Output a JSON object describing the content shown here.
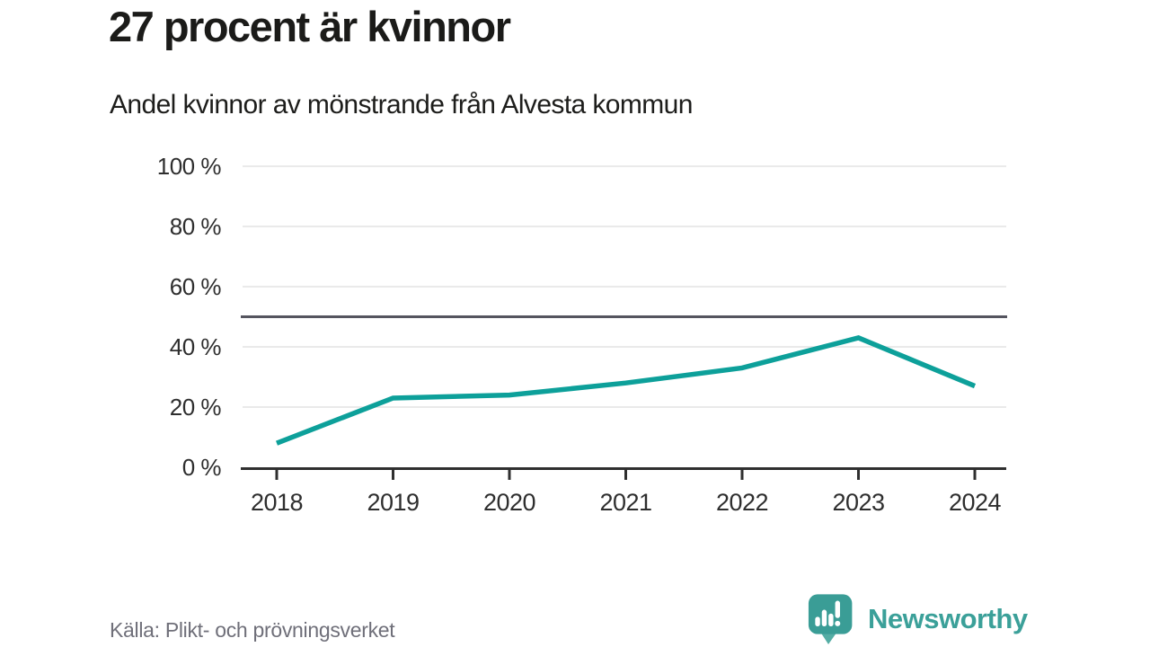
{
  "header": {
    "title": "27 procent är kvinnor",
    "subtitle": "Andel kvinnor av mönstrande från Alvesta kommun"
  },
  "chart_data": {
    "type": "line",
    "x": [
      2018,
      2019,
      2020,
      2021,
      2022,
      2023,
      2024
    ],
    "series": [
      {
        "name": "Andel kvinnor av mönstrande",
        "values": [
          8,
          23,
          24,
          28,
          33,
          43,
          27
        ]
      }
    ],
    "title": "27 procent är kvinnor",
    "subtitle": "Andel kvinnor av mönstrande från Alvesta kommun",
    "xlabel": "",
    "ylabel": "",
    "ylim": [
      0,
      100
    ],
    "yticks": [
      0,
      20,
      40,
      60,
      80,
      100
    ],
    "ytick_suffix": " %",
    "reference_line": 50,
    "grid": true,
    "legend": "none",
    "line_color": "#0da09a"
  },
  "footer": {
    "source": "Källa: Plikt- och prövningsverket",
    "brand": "Newsworthy"
  },
  "colors": {
    "line": "#0da09a",
    "grid": "#e3e3e3",
    "axis": "#2f2f2f",
    "reference": "#55555f",
    "tick_label": "#2e2e2e",
    "title": "#1b1b19",
    "source": "#6f6f79",
    "brand": "#3ba099",
    "logo_main": "#3a9d96",
    "logo_tail": "#54ada4"
  }
}
